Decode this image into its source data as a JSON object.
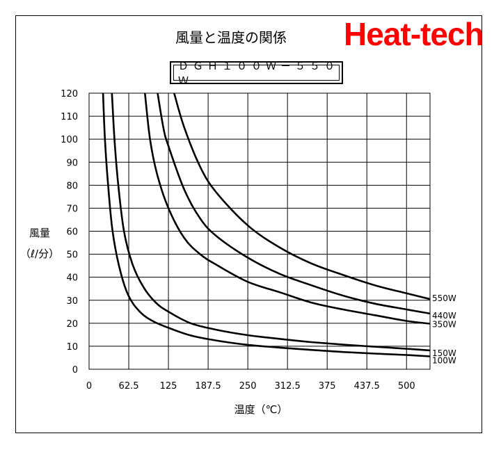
{
  "brand": {
    "text": "Heat-tech",
    "color": "#ff0000"
  },
  "chart_data": {
    "type": "line",
    "title": "風量と温度の関係",
    "subtitle": "ＤＧＨ１００Ｗ－５５０Ｗ",
    "xlabel": "温度（℃）",
    "ylabel_line1": "風量",
    "ylabel_line2": "（ℓ/分）",
    "xlim": [
      0,
      537
    ],
    "ylim": [
      0,
      120
    ],
    "x_ticks": [
      "0",
      "62.5",
      "125",
      "187.5",
      "250",
      "312.5",
      "375",
      "437.5",
      "500"
    ],
    "x_tick_values": [
      0,
      62.5,
      125,
      187.5,
      250,
      312.5,
      375,
      437.5,
      500
    ],
    "y_ticks": [
      "0",
      "10",
      "20",
      "30",
      "40",
      "50",
      "60",
      "70",
      "80",
      "90",
      "100",
      "110",
      "120"
    ],
    "y_tick_values": [
      0,
      10,
      20,
      30,
      40,
      50,
      60,
      70,
      80,
      90,
      100,
      110,
      120
    ],
    "grid": true,
    "series": [
      {
        "name": "100W",
        "points": [
          [
            22,
            120
          ],
          [
            25,
            100
          ],
          [
            30,
            80
          ],
          [
            37,
            60
          ],
          [
            48,
            44
          ],
          [
            62,
            32
          ],
          [
            80,
            25
          ],
          [
            100,
            21
          ],
          [
            125,
            18
          ],
          [
            160,
            14.7
          ],
          [
            200,
            12.5
          ],
          [
            250,
            10.6
          ],
          [
            300,
            9.4
          ],
          [
            350,
            8.4
          ],
          [
            400,
            7.5
          ],
          [
            450,
            6.8
          ],
          [
            500,
            6.2
          ],
          [
            537,
            5.6
          ]
        ]
      },
      {
        "name": "150W",
        "points": [
          [
            36,
            120
          ],
          [
            40,
            100
          ],
          [
            46,
            80
          ],
          [
            55,
            60
          ],
          [
            68,
            46
          ],
          [
            85,
            36
          ],
          [
            105,
            29
          ],
          [
            125,
            25
          ],
          [
            160,
            20
          ],
          [
            200,
            17.2
          ],
          [
            250,
            14.8
          ],
          [
            300,
            13.2
          ],
          [
            350,
            11.8
          ],
          [
            400,
            10.7
          ],
          [
            450,
            9.8
          ],
          [
            500,
            8.9
          ],
          [
            537,
            8.2
          ]
        ]
      },
      {
        "name": "350W",
        "points": [
          [
            88,
            120
          ],
          [
            96,
            100
          ],
          [
            107,
            85
          ],
          [
            125,
            70
          ],
          [
            150,
            57
          ],
          [
            175,
            50
          ],
          [
            200,
            45.5
          ],
          [
            250,
            38
          ],
          [
            300,
            33.5
          ],
          [
            350,
            29
          ],
          [
            400,
            26
          ],
          [
            450,
            23.5
          ],
          [
            500,
            21
          ],
          [
            537,
            19.8
          ]
        ]
      },
      {
        "name": "440W",
        "points": [
          [
            108,
            120
          ],
          [
            117,
            105
          ],
          [
            125,
            97
          ],
          [
            150,
            78
          ],
          [
            175,
            65.5
          ],
          [
            200,
            58
          ],
          [
            250,
            48.5
          ],
          [
            300,
            41.5
          ],
          [
            350,
            36.5
          ],
          [
            400,
            32
          ],
          [
            450,
            28.5
          ],
          [
            500,
            26
          ],
          [
            537,
            24.2
          ]
        ]
      },
      {
        "name": "550W",
        "points": [
          [
            134,
            120
          ],
          [
            150,
            105
          ],
          [
            175,
            88
          ],
          [
            200,
            77
          ],
          [
            250,
            62.5
          ],
          [
            300,
            53
          ],
          [
            350,
            46
          ],
          [
            400,
            41
          ],
          [
            450,
            36.5
          ],
          [
            500,
            33
          ],
          [
            537,
            30.5
          ]
        ]
      }
    ]
  }
}
